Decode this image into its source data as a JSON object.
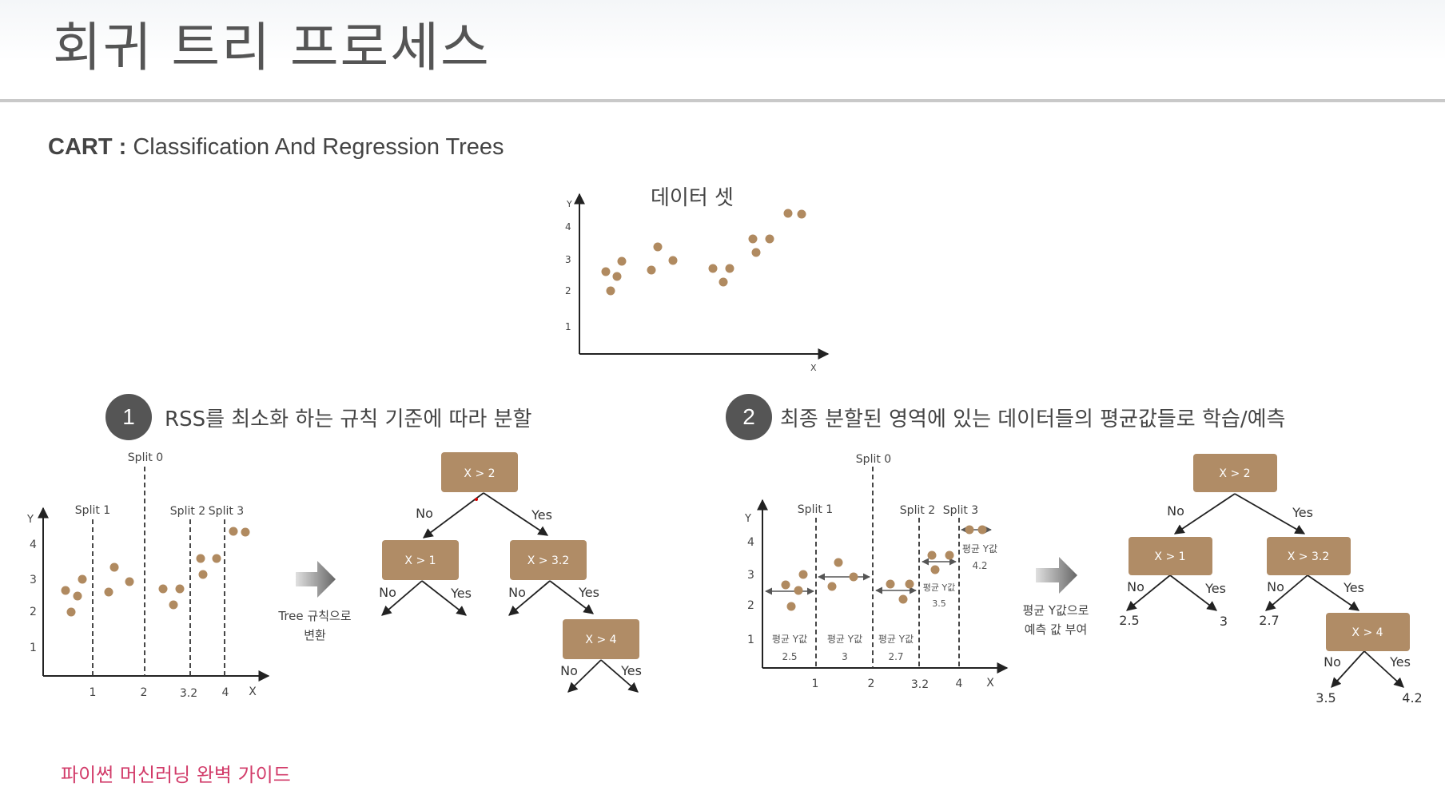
{
  "header": {
    "title": "회귀 트리 프로세스"
  },
  "subtitle": {
    "bold": "CART :",
    "rest": " Classification And Regression Trees"
  },
  "dataset_chart": {
    "title": "데이터 셋",
    "xlabel": "X",
    "ylabel": "Y",
    "yticks": [
      "1",
      "2",
      "3",
      "4"
    ]
  },
  "steps": [
    {
      "num": "1",
      "text": "RSS를 최소화 하는 규칙 기준에 따라 분할"
    },
    {
      "num": "2",
      "text": "최종 분할된 영역에 있는 데이터들의 평균값들로 학습/예측"
    }
  ],
  "split_chart1": {
    "splits": [
      "Split 0",
      "Split 1",
      "Split 2",
      "Split 3"
    ],
    "xticks": [
      "1",
      "2",
      "3.2",
      "4",
      "X"
    ],
    "yticks": [
      "1",
      "2",
      "3",
      "4"
    ],
    "ylabel": "Y"
  },
  "arrow1_label": [
    "Tree 규칙으로",
    "변환"
  ],
  "tree1": {
    "nodes": [
      "X > 2",
      "X > 1",
      "X > 3.2",
      "X > 4"
    ],
    "no": "No",
    "yes": "Yes"
  },
  "split_chart2": {
    "splits": [
      "Split 0",
      "Split 1",
      "Split 2",
      "Split 3"
    ],
    "xticks": [
      "1",
      "2",
      "3.2",
      "4",
      "X"
    ],
    "yticks": [
      "1",
      "2",
      "3",
      "4"
    ],
    "ylabel": "Y",
    "region_label": "평균 Y값",
    "region_values": [
      "2.5",
      "3",
      "2.7",
      "3.5",
      "4.2"
    ]
  },
  "arrow2_label": [
    "평균 Y값으로",
    "예측 값 부여"
  ],
  "tree2": {
    "nodes": [
      "X > 2",
      "X > 1",
      "X > 3.2",
      "X > 4"
    ],
    "no": "No",
    "yes": "Yes",
    "leaves": [
      "2.5",
      "3",
      "2.7",
      "3.5",
      "4.2"
    ]
  },
  "footer": {
    "text": "파이썬 머신러닝 완벽 가이드"
  },
  "colors": {
    "dot": "#b08a60",
    "node": "#b08c66",
    "node_text": "#ffffff",
    "accent": "#d23c6a"
  }
}
